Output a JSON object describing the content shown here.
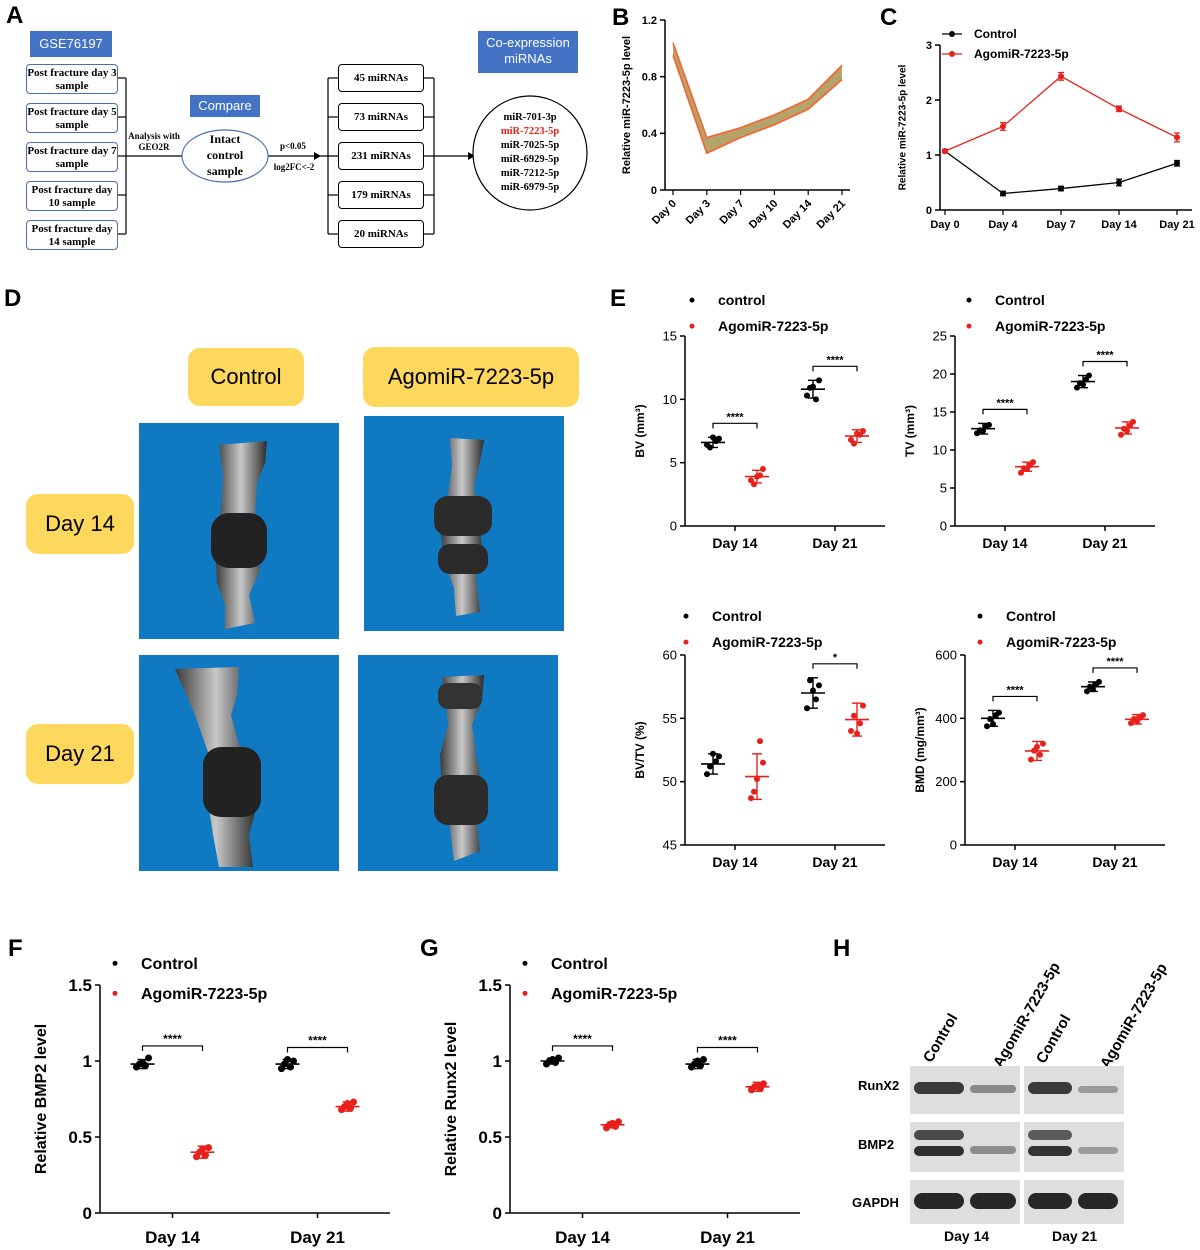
{
  "panels": {
    "A": "A",
    "B": "B",
    "C": "C",
    "D": "D",
    "E": "E",
    "F": "F",
    "G": "G",
    "H": "H"
  },
  "panelA": {
    "dataset": "GSE76197",
    "samples": [
      "Post fracture day 3 sample",
      "Post fracture day 5 sample",
      "Post fracture day 7 sample",
      "Post fracture day 10 sample",
      "Post fracture day 14 sample"
    ],
    "analysis": "Analysis with GEO2R",
    "compare": "Compare",
    "control": "Intact control sample",
    "threshold_p": "p<0.05",
    "threshold_fc": "log2FC<-2",
    "mirna_sets": [
      "45 miRNAs",
      "73 miRNAs",
      "231 miRNAs",
      "179 miRNAs",
      "20 miRNAs"
    ],
    "coexp_title": "Co-expression miRNAs",
    "coexp_list": [
      "miR-701-3p",
      "miR-7223-5p",
      "miR-7025-5p",
      "miR-6929-5p",
      "miR-7212-5p",
      "miR-6979-5p"
    ],
    "highlight": "miR-7223-5p",
    "highlight_color": "#e8201c"
  },
  "panelD": {
    "col_labels": [
      "Control",
      "AgomiR-7223-5p"
    ],
    "row_labels": [
      "Day 14",
      "Day 21"
    ],
    "tag_color": "#fdd85d",
    "bg_color": "#0f79c2"
  },
  "panelH": {
    "lanes": [
      "Control",
      "AgomiR-7223-5p",
      "Control",
      "AgomiR-7223-5p"
    ],
    "proteins": [
      "RunX2",
      "BMP2",
      "GAPDH"
    ],
    "groups": [
      "Day 14",
      "Day 21"
    ]
  },
  "colors": {
    "control": "#000000",
    "agomir": "#e8201c",
    "band_fill": "#b4a46a"
  },
  "chart_data": [
    {
      "id": "B",
      "type": "area",
      "categories": [
        "Day 0",
        "Day 3",
        "Day 7",
        "Day 10",
        "Day 14",
        "Day 21"
      ],
      "upper": [
        1.04,
        0.37,
        0.44,
        0.53,
        0.64,
        0.88
      ],
      "lower": [
        0.95,
        0.26,
        0.37,
        0.46,
        0.57,
        0.78
      ],
      "ylabel": "Relative miR-7223-5p level",
      "yticks": [
        0.0,
        0.4,
        0.8,
        1.2
      ],
      "ylim": [
        0,
        1.2
      ]
    },
    {
      "id": "C",
      "type": "line",
      "categories": [
        "Day 0",
        "Day 4",
        "Day 7",
        "Day 14",
        "Day 21"
      ],
      "series": [
        {
          "name": "Control",
          "values": [
            1.07,
            0.3,
            0.39,
            0.5,
            0.85
          ],
          "err": [
            0.03,
            0.04,
            0.04,
            0.06,
            0.05
          ]
        },
        {
          "name": "AgomiR-7223-5p",
          "values": [
            1.07,
            1.52,
            2.43,
            1.84,
            1.32
          ],
          "err": [
            0.03,
            0.07,
            0.07,
            0.05,
            0.08
          ]
        }
      ],
      "ylabel": "Relative miR-7223-5p level",
      "yticks": [
        0,
        1,
        2,
        3
      ],
      "ylim": [
        0,
        3
      ]
    },
    {
      "id": "E-BV",
      "type": "scatter",
      "categories": [
        "Day 14",
        "Day 21"
      ],
      "legend": [
        "control",
        "AgomiR-7223-5p"
      ],
      "series": [
        {
          "name": "control",
          "mean": [
            6.6,
            10.8
          ],
          "sd": [
            0.4,
            0.7
          ],
          "points": [
            [
              6.4,
              6.9,
              6.2,
              6.7,
              7.0
            ],
            [
              10.3,
              11.5,
              10.9,
              10.0,
              11.0
            ]
          ]
        },
        {
          "name": "AgomiR-7223-5p",
          "mean": [
            3.9,
            7.1
          ],
          "sd": [
            0.5,
            0.5
          ],
          "points": [
            [
              3.6,
              4.5,
              3.3,
              4.0,
              3.9
            ],
            [
              6.8,
              7.5,
              6.5,
              7.2,
              7.3
            ]
          ]
        }
      ],
      "ylabel": "BV (mm³)",
      "yticks": [
        0,
        5,
        10,
        15
      ],
      "ylim": [
        0,
        15
      ],
      "sig": [
        "****",
        "****"
      ]
    },
    {
      "id": "E-TV",
      "type": "scatter",
      "categories": [
        "Day 14",
        "Day 21"
      ],
      "legend": [
        "Control",
        "AgomiR-7223-5p"
      ],
      "series": [
        {
          "name": "Control",
          "mean": [
            12.8,
            19.0
          ],
          "sd": [
            0.7,
            0.8
          ],
          "points": [
            [
              12.2,
              13.3,
              12.6,
              13.1,
              12.5
            ],
            [
              18.2,
              19.8,
              18.8,
              19.3,
              18.6
            ]
          ]
        },
        {
          "name": "AgomiR-7223-5p",
          "mean": [
            7.8,
            12.9
          ],
          "sd": [
            0.6,
            0.8
          ],
          "points": [
            [
              7.0,
              8.4,
              7.6,
              8.0,
              7.5
            ],
            [
              12.0,
              13.7,
              12.8,
              13.2,
              12.5
            ]
          ]
        }
      ],
      "ylabel": "TV (mm³)",
      "yticks": [
        0,
        5,
        10,
        15,
        20,
        25
      ],
      "ylim": [
        0,
        25
      ],
      "sig": [
        "****",
        "****"
      ]
    },
    {
      "id": "E-BVTV",
      "type": "scatter",
      "categories": [
        "Day 14",
        "Day 21"
      ],
      "legend": [
        "Control",
        "AgomiR-7223-5p"
      ],
      "series": [
        {
          "name": "Control",
          "mean": [
            51.4,
            57.0
          ],
          "sd": [
            0.8,
            1.2
          ],
          "points": [
            [
              50.6,
              52.0,
              51.2,
              51.6,
              52.2
            ],
            [
              55.8,
              57.6,
              58.0,
              56.5,
              57.2
            ]
          ]
        },
        {
          "name": "AgomiR-7223-5p",
          "mean": [
            50.4,
            54.9
          ],
          "sd": [
            1.8,
            1.3
          ],
          "points": [
            [
              48.7,
              51.5,
              49.2,
              53.2,
              50.2
            ],
            [
              54.0,
              56.0,
              55.2,
              54.6,
              53.8
            ]
          ]
        }
      ],
      "ylabel": "BV/TV (%)",
      "yticks": [
        45,
        50,
        55,
        60
      ],
      "ylim": [
        45,
        60
      ],
      "sig": [
        "",
        "*"
      ]
    },
    {
      "id": "E-BMD",
      "type": "scatter",
      "categories": [
        "Day 14",
        "Day 21"
      ],
      "legend": [
        "Control",
        "AgomiR-7223-5p"
      ],
      "series": [
        {
          "name": "Control",
          "mean": [
            400,
            500
          ],
          "sd": [
            25,
            15
          ],
          "points": [
            [
              375,
              418,
              398,
              410,
              382
            ],
            [
              485,
              515,
              500,
              508,
              492
            ]
          ]
        },
        {
          "name": "AgomiR-7223-5p",
          "mean": [
            297,
            397
          ],
          "sd": [
            30,
            15
          ],
          "points": [
            [
              270,
              320,
              298,
              285,
              310
            ],
            [
              385,
              410,
              398,
              402,
              390
            ]
          ]
        }
      ],
      "ylabel": "BMD (mg/mm³)",
      "yticks": [
        0,
        200,
        400,
        600
      ],
      "ylim": [
        0,
        600
      ],
      "sig": [
        "****",
        "****"
      ]
    },
    {
      "id": "F",
      "type": "scatter",
      "categories": [
        "Day 14",
        "Day 21"
      ],
      "legend": [
        "Control",
        "AgomiR-7223-5p"
      ],
      "series": [
        {
          "name": "Control",
          "mean": [
            0.98,
            0.98
          ],
          "sd": [
            0.03,
            0.03
          ],
          "points": [
            [
              0.96,
              1.02,
              0.98,
              0.97,
              0.99
            ],
            [
              0.95,
              1.0,
              0.98,
              0.96,
              1.01
            ]
          ]
        },
        {
          "name": "AgomiR-7223-5p",
          "mean": [
            0.4,
            0.7
          ],
          "sd": [
            0.04,
            0.03
          ],
          "points": [
            [
              0.37,
              0.43,
              0.4,
              0.38,
              0.42
            ],
            [
              0.68,
              0.73,
              0.7,
              0.69,
              0.72
            ]
          ]
        }
      ],
      "ylabel": "Relative BMP2 level",
      "yticks": [
        0.0,
        0.5,
        1.0,
        1.5
      ],
      "ylim": [
        0,
        1.5
      ],
      "sig": [
        "****",
        "****"
      ]
    },
    {
      "id": "G",
      "type": "scatter",
      "categories": [
        "Day 14",
        "Day 21"
      ],
      "legend": [
        "Control",
        "AgomiR-7223-5p"
      ],
      "series": [
        {
          "name": "Control",
          "mean": [
            1.0,
            0.98
          ],
          "sd": [
            0.02,
            0.03
          ],
          "points": [
            [
              0.98,
              1.02,
              1.0,
              0.99,
              1.01
            ],
            [
              0.96,
              1.01,
              0.98,
              0.97,
              1.0
            ]
          ]
        },
        {
          "name": "AgomiR-7223-5p",
          "mean": [
            0.58,
            0.83
          ],
          "sd": [
            0.02,
            0.03
          ],
          "points": [
            [
              0.56,
              0.6,
              0.58,
              0.57,
              0.59
            ],
            [
              0.81,
              0.85,
              0.83,
              0.82,
              0.84
            ]
          ]
        }
      ],
      "ylabel": "Relative Runx2 level",
      "yticks": [
        0.0,
        0.5,
        1.0,
        1.5
      ],
      "ylim": [
        0,
        1.5
      ],
      "sig": [
        "****",
        "****"
      ]
    }
  ]
}
